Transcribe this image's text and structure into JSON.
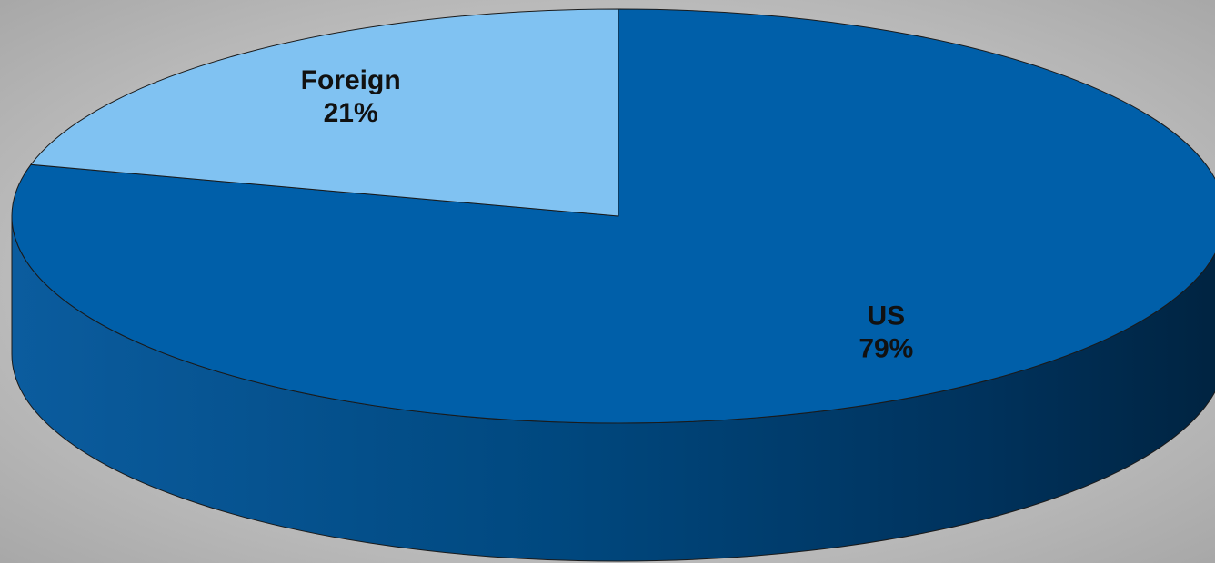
{
  "chart_data": {
    "type": "pie",
    "categories": [
      "US",
      "Foreign"
    ],
    "values": [
      79,
      21
    ],
    "value_labels": [
      "79%",
      "21%"
    ],
    "colors": [
      "#005fa9",
      "#80c2f2"
    ]
  }
}
